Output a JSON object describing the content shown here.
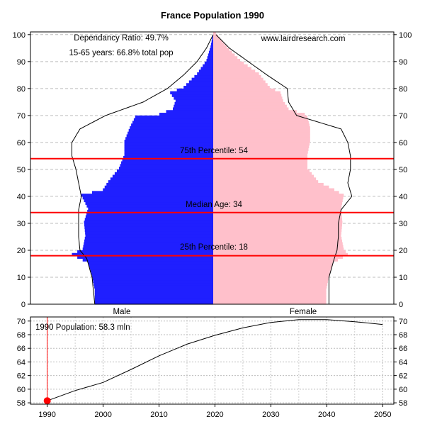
{
  "chart_data": [
    {
      "type": "bar",
      "orientation": "horizontal",
      "title": "France Population 1990",
      "ylim": [
        0,
        101
      ],
      "yticks": [
        0,
        10,
        20,
        30,
        40,
        50,
        60,
        70,
        80,
        90,
        100
      ],
      "grid": "horizontal-dashed",
      "annotations": {
        "dependency_ratio": "Dependancy Ratio: 49.7%",
        "working_age": "15-65 years: 66.8% total pop",
        "source": "www.lairdresearch.com",
        "p75_label": "75th Percentile: 54",
        "median_label": "Median Age: 34",
        "p25_label": "25th Percentile: 18"
      },
      "percentile_lines": [
        54,
        34,
        18
      ],
      "xlabels": {
        "male": "Male",
        "female": "Female"
      },
      "colors": {
        "male": "#1f1fff",
        "female": "#ffc0cb",
        "percentile": "#ff0000",
        "outline": "#000000"
      },
      "age_profile": {
        "ages": [
          0,
          5,
          10,
          15,
          18,
          20,
          25,
          30,
          35,
          40,
          42,
          45,
          50,
          55,
          60,
          65,
          69,
          70,
          72,
          75,
          78,
          80,
          85,
          90,
          95,
          100
        ],
        "male": [
          0.88,
          0.88,
          0.9,
          0.93,
          1.05,
          0.97,
          0.95,
          0.96,
          0.93,
          0.98,
          0.82,
          0.78,
          0.7,
          0.66,
          0.66,
          0.62,
          0.58,
          0.4,
          0.3,
          0.28,
          0.32,
          0.22,
          0.12,
          0.05,
          0.02,
          0.0
        ],
        "female": [
          0.84,
          0.84,
          0.86,
          0.89,
          1.0,
          0.97,
          0.95,
          0.96,
          0.95,
          0.97,
          0.9,
          0.78,
          0.7,
          0.7,
          0.72,
          0.72,
          0.7,
          0.68,
          0.56,
          0.52,
          0.5,
          0.42,
          0.34,
          0.2,
          0.1,
          0.02
        ]
      },
      "outline_profile": {
        "ages": [
          0,
          10,
          17,
          20,
          25,
          30,
          35,
          40,
          45,
          50,
          55,
          60,
          65,
          70,
          75,
          80,
          85,
          90,
          95,
          100
        ],
        "male": [
          0.88,
          0.9,
          0.94,
          0.99,
          1.0,
          1.0,
          1.0,
          0.98,
          1.0,
          1.02,
          1.05,
          1.05,
          0.99,
          0.8,
          0.52,
          0.34,
          0.22,
          0.12,
          0.05,
          0.0
        ],
        "female": [
          0.86,
          0.86,
          0.9,
          0.92,
          0.93,
          0.93,
          0.95,
          1.03,
          1.0,
          1.02,
          1.02,
          1.0,
          0.95,
          0.62,
          0.56,
          0.55,
          0.4,
          0.26,
          0.12,
          0.02
        ]
      }
    },
    {
      "type": "line",
      "annotation": "1990 Population: 58.3 mln",
      "xlim": [
        1987,
        2052
      ],
      "ylim": [
        57.8,
        70.6
      ],
      "xticks": [
        1990,
        2000,
        2010,
        2020,
        2030,
        2040,
        2050
      ],
      "yticks": [
        58,
        60,
        62,
        64,
        66,
        68,
        70
      ],
      "grid": "dotted",
      "marker": {
        "x": 1990,
        "y": 58.3
      },
      "x": [
        1990,
        1995,
        2000,
        2005,
        2010,
        2015,
        2020,
        2025,
        2030,
        2035,
        2040,
        2045,
        2050
      ],
      "y": [
        58.3,
        59.8,
        61.0,
        62.9,
        64.9,
        66.6,
        67.9,
        69.0,
        69.8,
        70.2,
        70.2,
        69.9,
        69.5
      ]
    }
  ]
}
